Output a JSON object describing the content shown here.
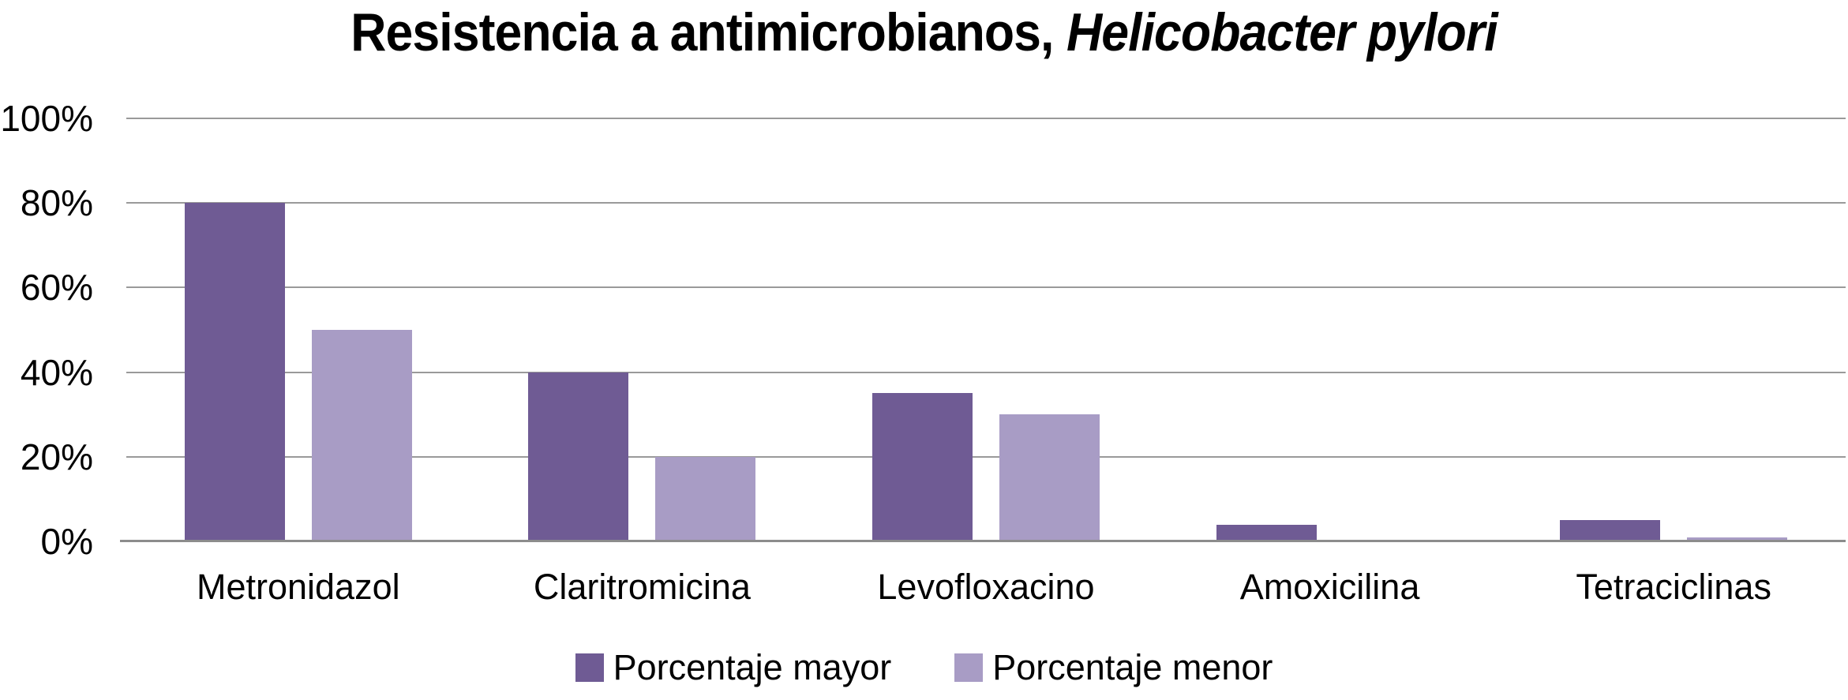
{
  "title": {
    "prefix": "Resistencia a antimicrobianos, ",
    "italic_part": "Helicobacter pylori"
  },
  "chart_data": {
    "type": "bar",
    "title": "Resistencia a antimicrobianos, Helicobacter pylori",
    "categories": [
      "Metronidazol",
      "Claritromicina",
      "Levofloxacino",
      "Amoxicilina",
      "Tetraciclinas"
    ],
    "series": [
      {
        "name": "Porcentaje mayor",
        "color": "#6F5B94",
        "values": [
          80,
          40,
          35,
          4,
          5
        ]
      },
      {
        "name": "Porcentaje menor",
        "color": "#A89CC5",
        "values": [
          50,
          20,
          30,
          0,
          1
        ]
      }
    ],
    "xlabel": "",
    "ylabel": "",
    "ylim": [
      0,
      100
    ],
    "yticks": [
      {
        "value": 100,
        "label": "100%"
      },
      {
        "value": 80,
        "label": "80%"
      },
      {
        "value": 60,
        "label": "60%"
      },
      {
        "value": 40,
        "label": "40%"
      },
      {
        "value": 20,
        "label": "20%"
      },
      {
        "value": 0,
        "label": "0%"
      }
    ],
    "grid": true,
    "legend_position": "bottom",
    "colors": {
      "gridline": "#9A9A9A",
      "axis_line": "#8C8C8C",
      "title_text": "#000000"
    }
  }
}
